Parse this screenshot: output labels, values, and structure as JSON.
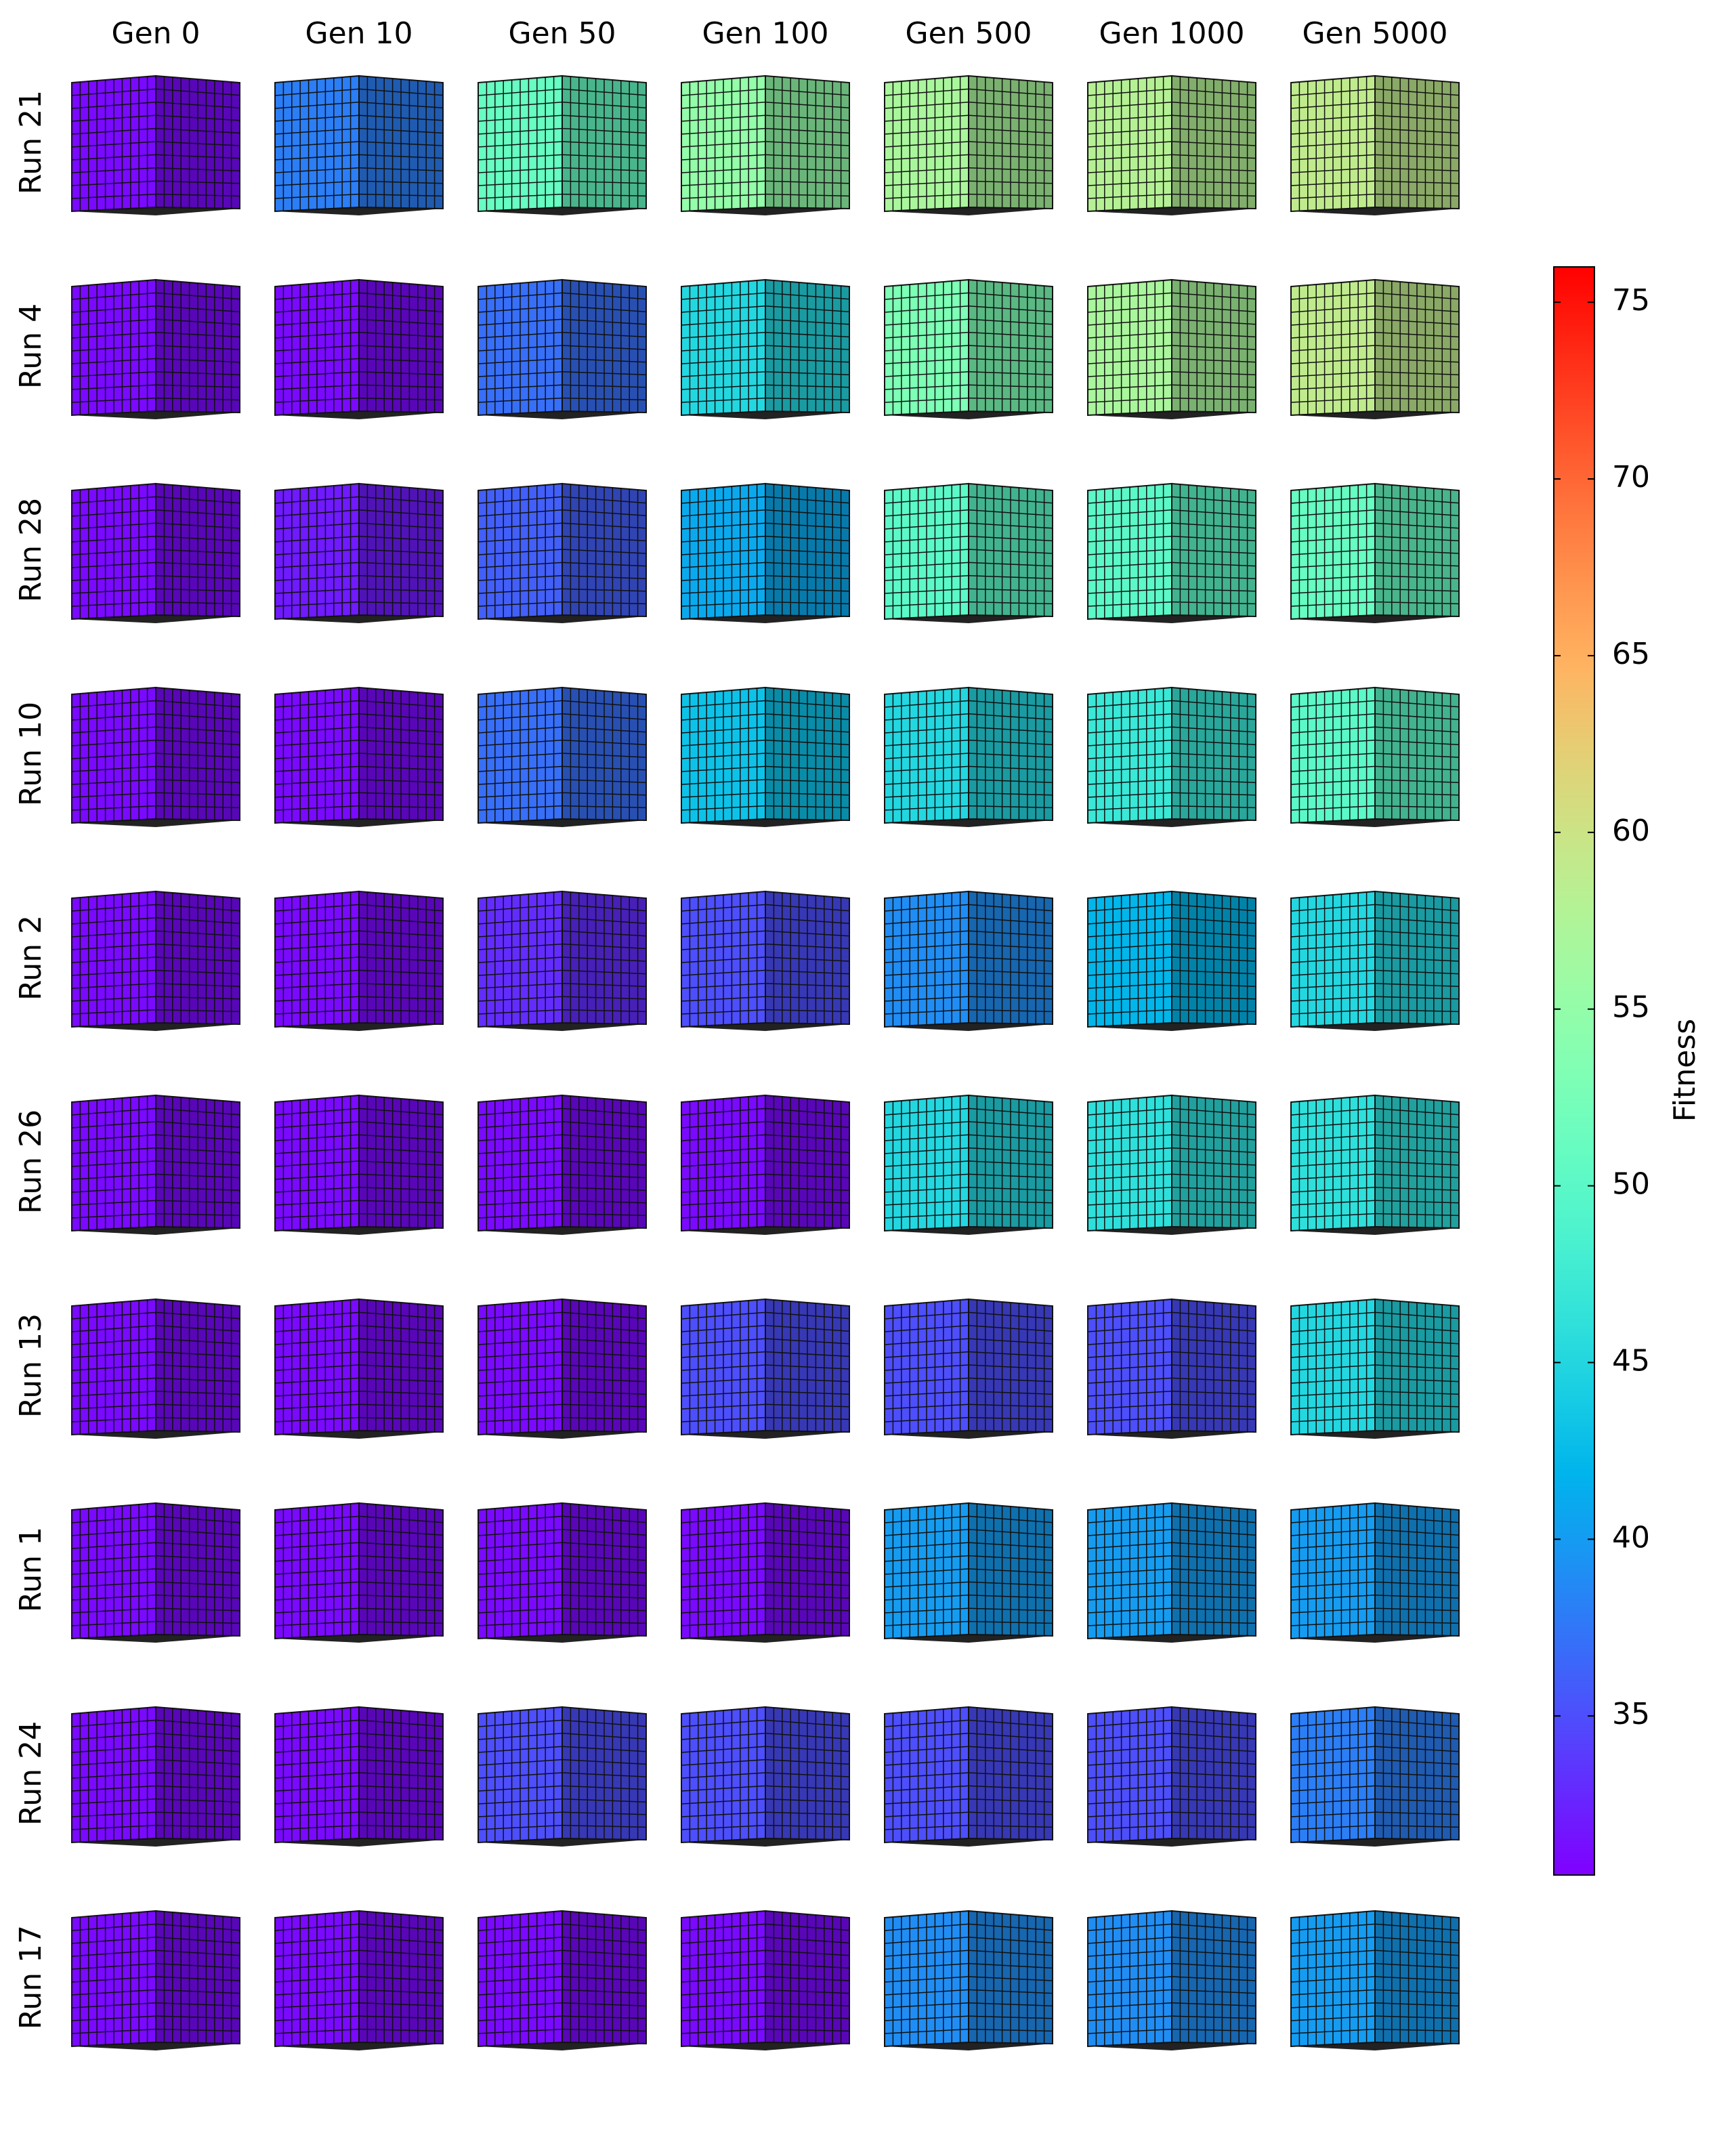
{
  "chart_data": {
    "type": "voxel-grid",
    "columns": [
      "Gen 0",
      "Gen 10",
      "Gen 50",
      "Gen 100",
      "Gen 500",
      "Gen 1000",
      "Gen 5000"
    ],
    "rows": [
      "Run 21",
      "Run 4",
      "Run 28",
      "Run 10",
      "Run 2",
      "Run 26",
      "Run 13",
      "Run 1",
      "Run 24",
      "Run 17"
    ],
    "values": [
      [
        31,
        38,
        51,
        55,
        57,
        58,
        59
      ],
      [
        31,
        31,
        37,
        45,
        53,
        57,
        59
      ],
      [
        31,
        32,
        36,
        41,
        50,
        50,
        51
      ],
      [
        31,
        31,
        37,
        43,
        45,
        47,
        50
      ],
      [
        31,
        31,
        33,
        35,
        39,
        42,
        45
      ],
      [
        31,
        31,
        31,
        31,
        45,
        46,
        46
      ],
      [
        31,
        31,
        31,
        35,
        35,
        35,
        45
      ],
      [
        31,
        31,
        31,
        31,
        40,
        40,
        40
      ],
      [
        31,
        31,
        35,
        35,
        35,
        35,
        38
      ],
      [
        31,
        31,
        31,
        31,
        39,
        39,
        40
      ]
    ],
    "colormap": "rainbow",
    "colorbar_label": "Fitness",
    "clim": [
      30.5,
      76
    ],
    "cticks": [
      35,
      40,
      45,
      50,
      55,
      60,
      65,
      70,
      75
    ]
  }
}
